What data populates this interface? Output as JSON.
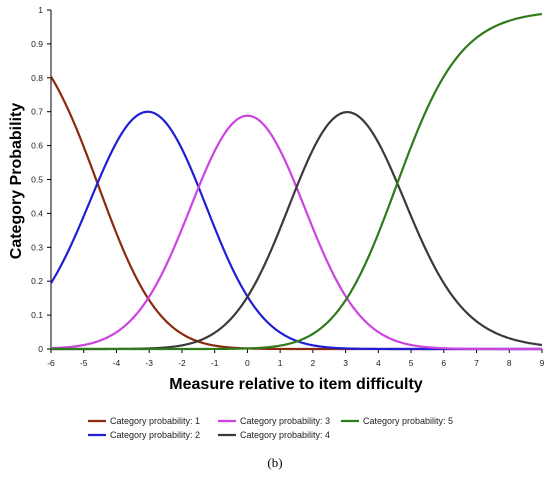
{
  "chart_data": {
    "type": "line",
    "xlabel": "Measure relative to item difficulty",
    "ylabel": "Category Probability",
    "xlim": [
      -6,
      9
    ],
    "ylim": [
      0,
      1
    ],
    "x_ticks": [
      "-6",
      "-5",
      "-4",
      "-3",
      "-2",
      "-1",
      "0",
      "1",
      "2",
      "3",
      "4",
      "5",
      "6",
      "7",
      "8",
      "9"
    ],
    "y_ticks": [
      "0",
      "0.1",
      "0.2",
      "0.3",
      "0.4",
      "0.5",
      "0.6",
      "0.7",
      "0.8",
      "0.9",
      "1"
    ],
    "grid": false,
    "legend_position": "bottom",
    "model": {
      "type": "rating-scale category probability curves",
      "thresholds": [
        -4.58,
        -1.49,
        1.5,
        4.58
      ]
    },
    "series": [
      {
        "name": "Category probability: 1",
        "color": "#8B2A0E",
        "x": [
          -6,
          -5,
          -4,
          -3,
          -2,
          -1,
          0,
          1,
          2,
          3,
          4,
          5,
          6,
          7,
          8,
          9
        ],
        "y": [
          0.8,
          0.57,
          0.3,
          0.11,
          0.03,
          0.01,
          0,
          0,
          0,
          0,
          0,
          0,
          0,
          0,
          0,
          0
        ]
      },
      {
        "name": "Category probability: 2",
        "color": "#1F1FD6",
        "x": [
          -6,
          -5,
          -4,
          -3,
          -2,
          -1,
          0,
          1,
          2,
          3,
          4,
          5,
          6,
          7,
          8,
          9
        ],
        "y": [
          0.19,
          0.4,
          0.63,
          0.72,
          0.61,
          0.36,
          0.15,
          0.05,
          0.01,
          0,
          0,
          0,
          0,
          0,
          0,
          0
        ]
      },
      {
        "name": "Category probability: 3",
        "color": "#CC44E0",
        "x": [
          -6,
          -5,
          -4,
          -3,
          -2,
          -1,
          0,
          1,
          2,
          3,
          4,
          5,
          6,
          7,
          8,
          9
        ],
        "y": [
          0,
          0.01,
          0.04,
          0.14,
          0.33,
          0.53,
          0.64,
          0.55,
          0.33,
          0.15,
          0.05,
          0.01,
          0,
          0,
          0,
          0
        ]
      },
      {
        "name": "Category probability: 4",
        "color": "#3A3A3A",
        "x": [
          -6,
          -5,
          -4,
          -3,
          -2,
          -1,
          0,
          1,
          2,
          3,
          4,
          5,
          6,
          7,
          8,
          9
        ],
        "y": [
          0,
          0,
          0,
          0.01,
          0.03,
          0.11,
          0.2,
          0.43,
          0.63,
          0.72,
          0.63,
          0.4,
          0.19,
          0.08,
          0.03,
          0.01
        ]
      },
      {
        "name": "Category probability: 5",
        "color": "#2F7A1A",
        "x": [
          -6,
          -5,
          -4,
          -3,
          -2,
          -1,
          0,
          1,
          2,
          3,
          4,
          5,
          6,
          7,
          8,
          9
        ],
        "y": [
          0,
          0,
          0,
          0,
          0,
          0,
          0,
          0.02,
          0.05,
          0.13,
          0.31,
          0.57,
          0.8,
          0.92,
          0.97,
          0.99
        ]
      }
    ]
  },
  "caption": "(b)"
}
